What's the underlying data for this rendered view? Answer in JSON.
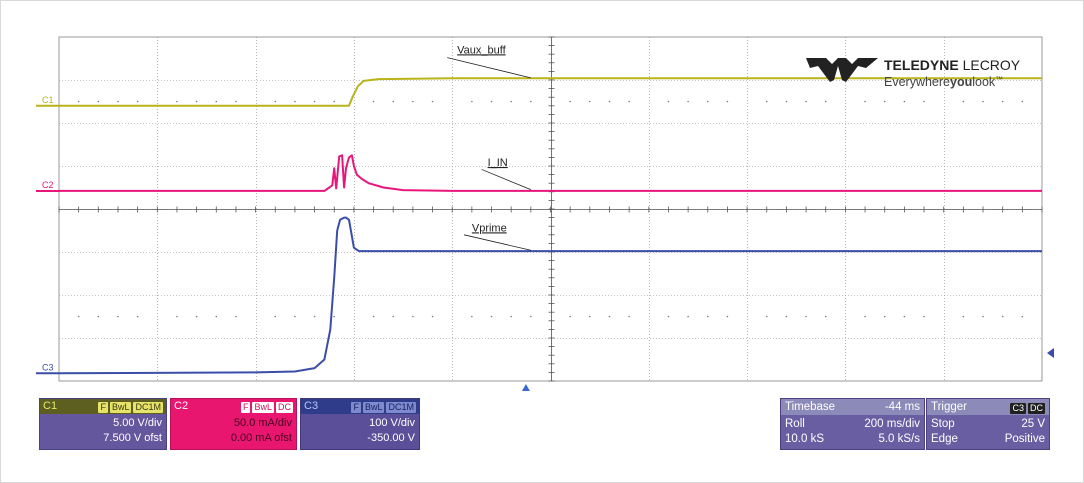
{
  "brand": {
    "name_bold": "TELEDYNE",
    "name_light": " LECROY",
    "tagline_a": "Everywhere",
    "tagline_b": "you",
    "tagline_c": "look",
    "tm": "™"
  },
  "colors": {
    "c1": "#b8b41a",
    "c2": "#e8167a",
    "c3": "#3a4ea8",
    "grid": "#8a8a8a",
    "panel_bg": "#6a5ea3"
  },
  "chart_data": {
    "type": "line",
    "title": "",
    "grid": true,
    "divisions": {
      "x": 10,
      "y": 8
    },
    "xlim": [
      0,
      10
    ],
    "ylim": [
      0,
      8
    ],
    "x_unit": "div",
    "y_unit": "div",
    "series": [
      {
        "name": "C1",
        "trace_label": "Vaux_buff",
        "x": [
          0,
          2.95,
          2.99,
          3.04,
          3.1,
          3.25,
          4.0,
          6.0,
          8.0,
          10
        ],
        "y": [
          6.4,
          6.4,
          6.62,
          6.85,
          6.98,
          7.02,
          7.04,
          7.04,
          7.04,
          7.04
        ]
      },
      {
        "name": "C2",
        "trace_label": "I_IN",
        "x": [
          0,
          2.7,
          2.75,
          2.78,
          2.8,
          2.82,
          2.85,
          2.88,
          2.9,
          2.92,
          2.95,
          2.98,
          3.0,
          3.03,
          3.08,
          3.15,
          3.3,
          3.5,
          4.0,
          6.0,
          8.0,
          10
        ],
        "y": [
          4.42,
          4.42,
          4.5,
          4.55,
          4.95,
          4.48,
          5.22,
          5.25,
          4.5,
          4.95,
          5.2,
          5.25,
          5.0,
          4.8,
          4.7,
          4.6,
          4.5,
          4.44,
          4.42,
          4.42,
          4.42,
          4.42
        ]
      },
      {
        "name": "C3",
        "trace_label": "Vprime",
        "x": [
          0,
          2.0,
          2.4,
          2.6,
          2.7,
          2.76,
          2.8,
          2.83,
          2.86,
          2.9,
          2.92,
          2.95,
          3.0,
          3.05,
          4.0,
          6.0,
          8.0,
          10
        ],
        "y": [
          0.18,
          0.2,
          0.22,
          0.3,
          0.5,
          1.2,
          2.4,
          3.5,
          3.75,
          3.8,
          3.8,
          3.75,
          3.1,
          3.02,
          3.02,
          3.02,
          3.02,
          3.02
        ]
      }
    ],
    "trace_labels": [
      "Vaux_buff",
      "I_IN",
      "Vprime"
    ],
    "channel_markers": [
      "C1",
      "C2",
      "C3"
    ],
    "trigger_level_div": 0.65,
    "trigger_position_div": 4.75
  },
  "channels": [
    {
      "id": "C1",
      "tags": [
        "F",
        "BwL",
        "DC1M"
      ],
      "scale": "5.00 V/div",
      "offset": "7.500 V ofst"
    },
    {
      "id": "C2",
      "tags": [
        "F",
        "BwL",
        "DC"
      ],
      "scale": "50.0 mA/div",
      "offset": "0.00 mA ofst"
    },
    {
      "id": "C3",
      "tags": [
        "F",
        "BwL",
        "DC1M"
      ],
      "scale": "100 V/div",
      "offset": "-350.00 V"
    }
  ],
  "timebase": {
    "label": "Timebase",
    "delay": "-44 ms",
    "mode": "Roll",
    "scale": "200 ms/div",
    "samples": "10.0 kS",
    "rate": "5.0 kS/s"
  },
  "trigger": {
    "label": "Trigger",
    "source": "C3",
    "coupling": "DC",
    "mode": "Stop",
    "level": "25 V",
    "type": "Edge",
    "slope": "Positive"
  }
}
